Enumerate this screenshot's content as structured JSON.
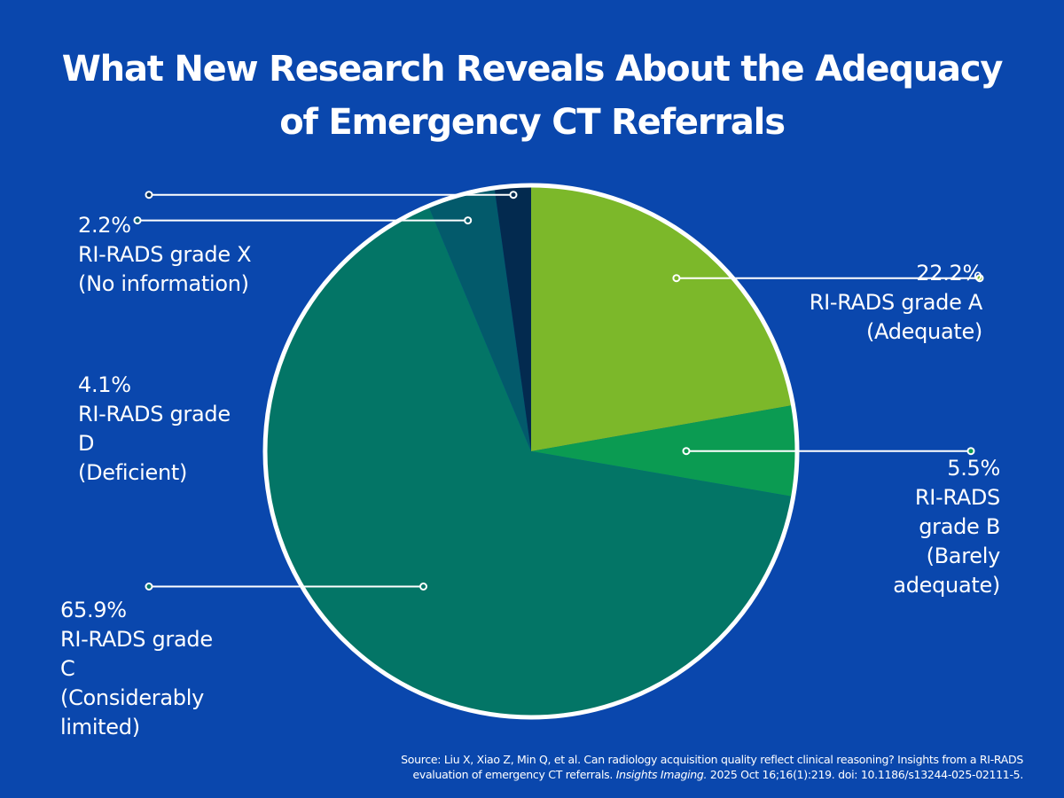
{
  "title": "What New Research Reveals About the Adequacy of Emergency CT Referrals",
  "colors": {
    "background": "#0a47ad",
    "grade_a": "#7cb82a",
    "grade_b": "#0b9b52",
    "grade_c": "#037566",
    "grade_d": "#035a6b",
    "grade_x": "#032a4f",
    "outline": "#ffffff"
  },
  "chart_data": {
    "type": "pie",
    "title": "What New Research Reveals About the Adequacy of Emergency CT Referrals",
    "start": "12 o'clock, clockwise",
    "slices": [
      {
        "key": "a",
        "pct": "22.2%",
        "value": 22.2,
        "name_lines": [
          "RI-RADS grade A",
          "(Adequate)"
        ],
        "color": "#7cb82a"
      },
      {
        "key": "b",
        "pct": "5.5%",
        "value": 5.5,
        "name_lines": [
          "RI-RADS",
          "grade B",
          "(Barely",
          "adequate)"
        ],
        "color": "#0b9b52"
      },
      {
        "key": "c",
        "pct": "65.9%",
        "value": 65.9,
        "name_lines": [
          "RI-RADS grade",
          "C",
          "(Considerably",
          "limited)"
        ],
        "color": "#037566"
      },
      {
        "key": "d",
        "pct": "4.1%",
        "value": 4.1,
        "name_lines": [
          "RI-RADS grade",
          "D",
          "(Deficient)"
        ],
        "color": "#035a6b"
      },
      {
        "key": "x",
        "pct": "2.2%",
        "value": 2.2,
        "name_lines": [
          "RI-RADS grade X",
          "(No information)"
        ],
        "color": "#032a4f"
      }
    ]
  },
  "source": {
    "line1": "Source: Liu X, Xiao Z, Min Q, et al. Can radiology acquisition quality reflect clinical reasoning? Insights from a RI-RADS",
    "line2_prefix": "evaluation of emergency CT referrals. ",
    "line2_journal": "Insights Imaging.",
    "line2_suffix": " 2025 Oct 16;16(1):219. doi: 10.1186/s13244-025-02111-5."
  }
}
